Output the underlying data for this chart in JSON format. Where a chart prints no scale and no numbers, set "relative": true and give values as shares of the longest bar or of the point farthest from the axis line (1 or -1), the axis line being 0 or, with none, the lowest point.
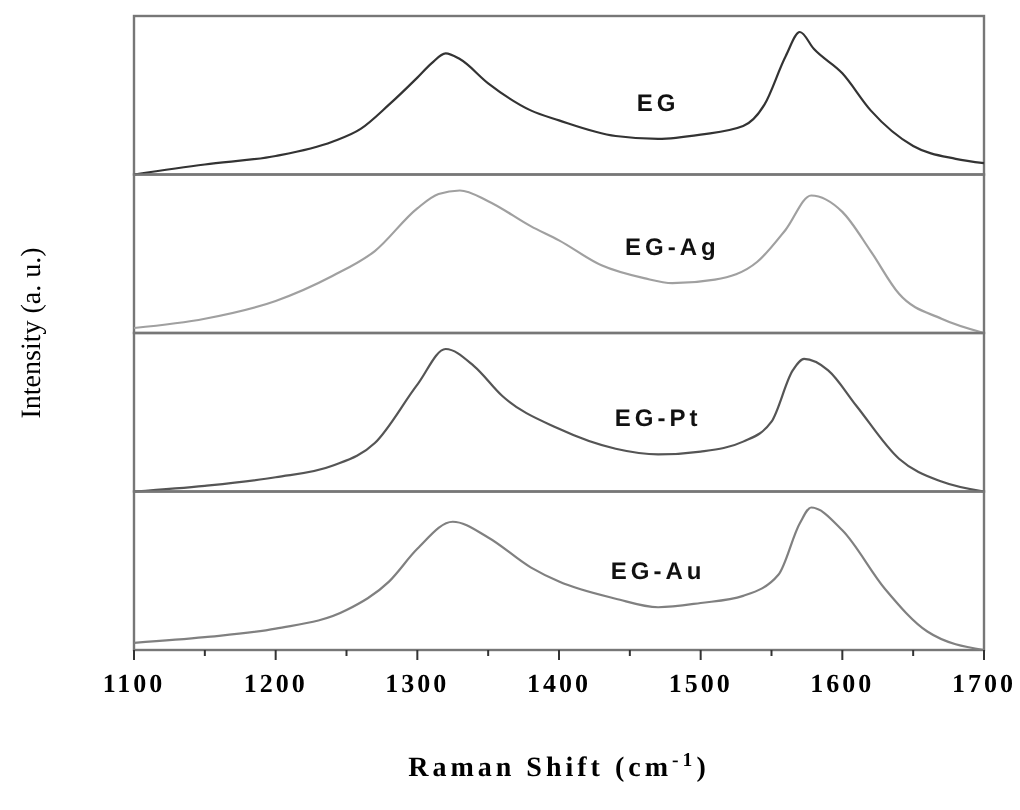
{
  "chart_data": [
    {
      "type": "line",
      "relative": true,
      "ylabel": "Intensity (a. u.)",
      "xlim": [
        1100,
        1700
      ],
      "tick_labels": false,
      "series": [
        {
          "name": "EG",
          "color": "#333333",
          "x": [
            1100,
            1150,
            1200,
            1240,
            1260,
            1280,
            1300,
            1310,
            1320,
            1330,
            1350,
            1380,
            1400,
            1440,
            1470,
            1500,
            1530,
            1545,
            1560,
            1570,
            1580,
            1600,
            1620,
            1650,
            1680,
            1700
          ],
          "values": [
            0,
            0.07,
            0.13,
            0.23,
            0.32,
            0.49,
            0.68,
            0.78,
            0.85,
            0.81,
            0.64,
            0.45,
            0.38,
            0.27,
            0.25,
            0.28,
            0.34,
            0.49,
            0.83,
            1,
            0.88,
            0.71,
            0.45,
            0.2,
            0.11,
            0.08
          ]
        }
      ]
    },
    {
      "type": "line",
      "relative": true,
      "xlim": [
        1100,
        1700
      ],
      "tick_labels": false,
      "series": [
        {
          "name": "EG-Ag",
          "color": "#a0a0a0",
          "x": [
            1100,
            1150,
            1200,
            1240,
            1270,
            1300,
            1315,
            1330,
            1350,
            1380,
            1400,
            1430,
            1460,
            1480,
            1510,
            1540,
            1560,
            1578,
            1600,
            1620,
            1640,
            1670,
            1700
          ],
          "values": [
            0.035,
            0.1,
            0.225,
            0.4,
            0.575,
            0.875,
            0.975,
            1,
            0.925,
            0.75,
            0.65,
            0.475,
            0.385,
            0.35,
            0.375,
            0.5,
            0.725,
            0.965,
            0.85,
            0.575,
            0.275,
            0.1,
            0
          ]
        }
      ]
    },
    {
      "type": "line",
      "relative": true,
      "xlim": [
        1100,
        1700
      ],
      "tick_labels": false,
      "series": [
        {
          "name": "EG-Pt",
          "color": "#555555",
          "x": [
            1100,
            1150,
            1200,
            1240,
            1270,
            1300,
            1320,
            1340,
            1360,
            1400,
            1440,
            1470,
            1500,
            1530,
            1550,
            1565,
            1573,
            1590,
            1610,
            1640,
            1670,
            1700
          ],
          "values": [
            0,
            0.04,
            0.1,
            0.18,
            0.34,
            0.75,
            1,
            0.88,
            0.67,
            0.44,
            0.3,
            0.26,
            0.28,
            0.35,
            0.49,
            0.85,
            0.93,
            0.85,
            0.6,
            0.23,
            0.07,
            0
          ]
        }
      ]
    },
    {
      "type": "line",
      "relative": true,
      "xlabel": "Raman Shift (cm$^{-1}$)",
      "xlim": [
        1100,
        1700
      ],
      "tick_labels": "x",
      "xticks": [
        1100,
        {
          "value": 1150,
          "label": null
        },
        1200,
        {
          "value": 1250,
          "label": null
        },
        1300,
        {
          "value": 1350,
          "label": null
        },
        1400,
        {
          "value": 1450,
          "label": null
        },
        1500,
        {
          "value": 1550,
          "label": null
        },
        1600,
        {
          "value": 1650,
          "label": null
        },
        1700
      ],
      "series": [
        {
          "name": "EG-Au",
          "color": "#808080",
          "x": [
            1100,
            1150,
            1200,
            1250,
            1280,
            1300,
            1325,
            1350,
            1380,
            1400,
            1440,
            1470,
            1500,
            1530,
            1555,
            1570,
            1578,
            1600,
            1630,
            1660,
            1700
          ],
          "values": [
            0.05,
            0.09,
            0.15,
            0.28,
            0.48,
            0.71,
            0.9,
            0.79,
            0.58,
            0.48,
            0.36,
            0.3,
            0.33,
            0.38,
            0.53,
            0.89,
            1,
            0.84,
            0.43,
            0.13,
            0
          ]
        }
      ]
    }
  ]
}
